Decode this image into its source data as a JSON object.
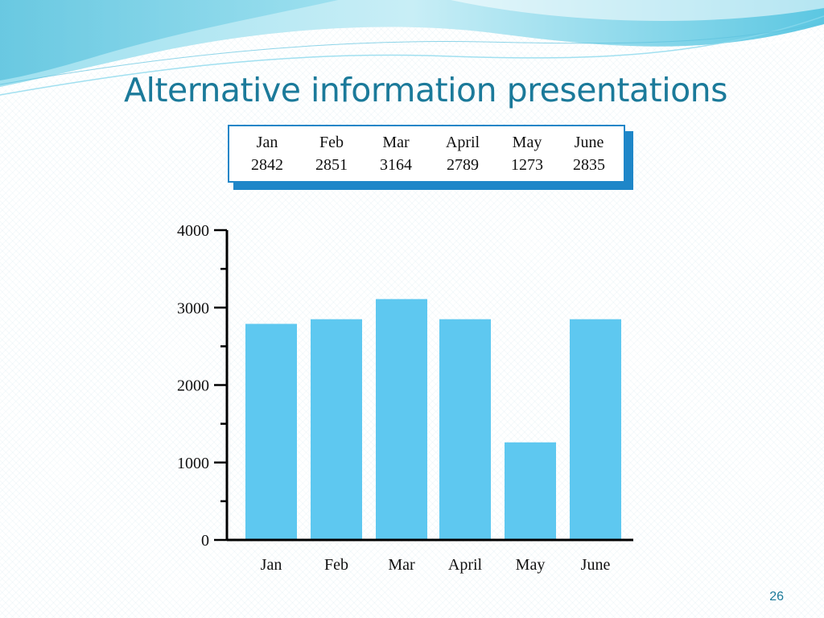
{
  "slide": {
    "title": "Alternative information presentations",
    "page_number": "26"
  },
  "table": {
    "headers": [
      "Jan",
      "Feb",
      "Mar",
      "April",
      "May",
      "June"
    ],
    "values": [
      "2842",
      "2851",
      "3164",
      "2789",
      "1273",
      "2835"
    ]
  },
  "chart_data": {
    "type": "bar",
    "categories": [
      "Jan",
      "Feb",
      "Mar",
      "April",
      "May",
      "June"
    ],
    "values": [
      2790,
      2850,
      3110,
      2850,
      1260,
      2850
    ],
    "ylim": [
      0,
      4000
    ],
    "yticks": [
      "0",
      "1000",
      "2000",
      "3000",
      "4000"
    ],
    "title": "",
    "xlabel": "",
    "ylabel": "",
    "grid": false,
    "bar_color": "#5ec8f0"
  },
  "colors": {
    "title": "#1b7a9a",
    "table_border": "#1e86c8",
    "wave_light": "#bfe9f3",
    "wave_dark": "#3fb7d8"
  }
}
